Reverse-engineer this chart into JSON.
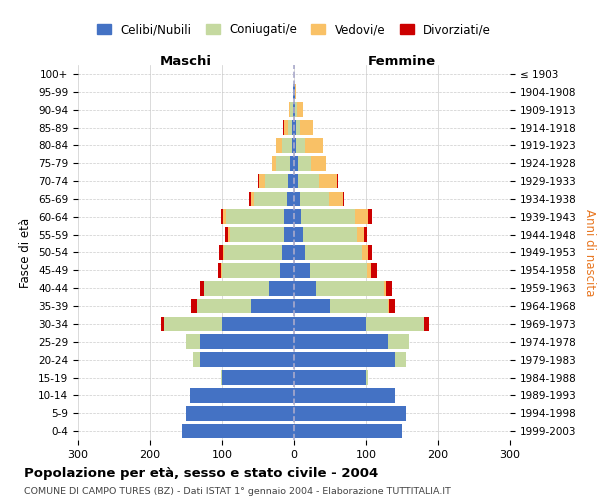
{
  "age_groups": [
    "0-4",
    "5-9",
    "10-14",
    "15-19",
    "20-24",
    "25-29",
    "30-34",
    "35-39",
    "40-44",
    "45-49",
    "50-54",
    "55-59",
    "60-64",
    "65-69",
    "70-74",
    "75-79",
    "80-84",
    "85-89",
    "90-94",
    "95-99",
    "100+"
  ],
  "birth_years": [
    "1999-2003",
    "1994-1998",
    "1989-1993",
    "1984-1988",
    "1979-1983",
    "1974-1978",
    "1969-1973",
    "1964-1968",
    "1959-1963",
    "1954-1958",
    "1949-1953",
    "1944-1948",
    "1939-1943",
    "1934-1938",
    "1929-1933",
    "1924-1928",
    "1919-1923",
    "1914-1918",
    "1909-1913",
    "1904-1908",
    "≤ 1903"
  ],
  "maschi": {
    "celibi": [
      155,
      150,
      145,
      100,
      130,
      130,
      100,
      60,
      35,
      20,
      17,
      14,
      14,
      10,
      8,
      5,
      3,
      3,
      2,
      1,
      0
    ],
    "coniugati": [
      0,
      0,
      0,
      2,
      10,
      20,
      80,
      75,
      90,
      80,
      80,
      75,
      80,
      45,
      32,
      20,
      14,
      6,
      3,
      0,
      0
    ],
    "vedovi": [
      0,
      0,
      0,
      0,
      0,
      0,
      0,
      0,
      0,
      1,
      2,
      2,
      4,
      5,
      8,
      5,
      8,
      5,
      2,
      0,
      0
    ],
    "divorziati": [
      0,
      0,
      0,
      0,
      0,
      0,
      5,
      8,
      6,
      5,
      5,
      5,
      3,
      2,
      2,
      0,
      0,
      1,
      0,
      0,
      0
    ]
  },
  "femmine": {
    "nubili": [
      150,
      155,
      140,
      100,
      140,
      130,
      100,
      50,
      30,
      22,
      15,
      12,
      10,
      8,
      5,
      5,
      3,
      3,
      2,
      1,
      0
    ],
    "coniugate": [
      0,
      0,
      0,
      3,
      15,
      30,
      80,
      80,
      95,
      80,
      80,
      75,
      75,
      40,
      30,
      18,
      12,
      5,
      2,
      0,
      0
    ],
    "vedove": [
      0,
      0,
      0,
      0,
      0,
      0,
      0,
      2,
      3,
      5,
      8,
      10,
      18,
      20,
      25,
      22,
      25,
      18,
      8,
      2,
      0
    ],
    "divorziate": [
      0,
      0,
      0,
      0,
      0,
      0,
      8,
      8,
      8,
      8,
      5,
      5,
      5,
      1,
      1,
      0,
      0,
      0,
      0,
      0,
      0
    ]
  },
  "colors": {
    "celibi": "#4472C4",
    "coniugati": "#c5d9a0",
    "vedovi": "#f9c166",
    "divorziati": "#cc0000"
  },
  "title": "Popolazione per età, sesso e stato civile - 2004",
  "subtitle": "COMUNE DI CAMPO TURES (BZ) - Dati ISTAT 1° gennaio 2004 - Elaborazione TUTTITALIA.IT",
  "xlabel_left": "Maschi",
  "xlabel_right": "Femmine",
  "ylabel_left": "Fasce di età",
  "ylabel_right": "Anni di nascita",
  "xlim": 300,
  "legend_labels": [
    "Celibi/Nubili",
    "Coniugati/e",
    "Vedovi/e",
    "Divorziati/e"
  ]
}
